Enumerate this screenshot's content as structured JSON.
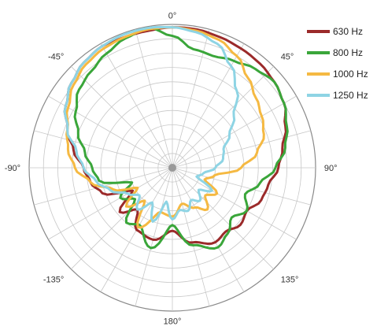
{
  "chart_data": {
    "type": "polar-line",
    "title": "",
    "angle_ticks": [
      {
        "angle": 0,
        "label": "0°"
      },
      {
        "angle": -45,
        "label": "-45°"
      },
      {
        "angle": 45,
        "label": "45°"
      },
      {
        "angle": -90,
        "label": "-90°"
      },
      {
        "angle": 90,
        "label": "90°"
      },
      {
        "angle": -135,
        "label": "-135°"
      },
      {
        "angle": 135,
        "label": "135°"
      },
      {
        "angle": 180,
        "label": "180°"
      }
    ],
    "angular_grid_step_deg": 15,
    "radial_grid_rings": 10,
    "legend_position": "top-right",
    "series": [
      {
        "name": "630 Hz",
        "color": "#9b2a2a",
        "points": [
          [
            -180,
            0.44
          ],
          [
            -165,
            0.52
          ],
          [
            -150,
            0.5
          ],
          [
            -140,
            0.38
          ],
          [
            -130,
            0.48
          ],
          [
            -120,
            0.32
          ],
          [
            -110,
            0.52
          ],
          [
            -100,
            0.58
          ],
          [
            -90,
            0.62
          ],
          [
            -80,
            0.7
          ],
          [
            -70,
            0.78
          ],
          [
            -60,
            0.86
          ],
          [
            -50,
            0.92
          ],
          [
            -40,
            0.96
          ],
          [
            -30,
            0.98
          ],
          [
            -20,
            0.97
          ],
          [
            -10,
            0.97
          ],
          [
            0,
            0.98
          ],
          [
            10,
            0.98
          ],
          [
            20,
            0.97
          ],
          [
            30,
            0.96
          ],
          [
            40,
            0.95
          ],
          [
            50,
            0.93
          ],
          [
            60,
            0.9
          ],
          [
            70,
            0.84
          ],
          [
            80,
            0.78
          ],
          [
            90,
            0.74
          ],
          [
            100,
            0.68
          ],
          [
            110,
            0.66
          ],
          [
            120,
            0.6
          ],
          [
            130,
            0.62
          ],
          [
            140,
            0.58
          ],
          [
            150,
            0.6
          ],
          [
            165,
            0.54
          ],
          [
            180,
            0.44
          ]
        ]
      },
      {
        "name": "800 Hz",
        "color": "#3aa63a",
        "points": [
          [
            -180,
            0.4
          ],
          [
            -165,
            0.58
          ],
          [
            -150,
            0.46
          ],
          [
            -140,
            0.5
          ],
          [
            -130,
            0.34
          ],
          [
            -120,
            0.42
          ],
          [
            -110,
            0.3
          ],
          [
            -100,
            0.52
          ],
          [
            -90,
            0.56
          ],
          [
            -80,
            0.62
          ],
          [
            -70,
            0.7
          ],
          [
            -60,
            0.78
          ],
          [
            -50,
            0.85
          ],
          [
            -40,
            0.88
          ],
          [
            -30,
            0.92
          ],
          [
            -20,
            0.96
          ],
          [
            -10,
            0.99
          ],
          [
            0,
            0.92
          ],
          [
            10,
            0.84
          ],
          [
            20,
            0.83
          ],
          [
            30,
            0.86
          ],
          [
            40,
            0.9
          ],
          [
            50,
            0.93
          ],
          [
            60,
            0.9
          ],
          [
            70,
            0.85
          ],
          [
            80,
            0.8
          ],
          [
            90,
            0.72
          ],
          [
            100,
            0.62
          ],
          [
            110,
            0.54
          ],
          [
            120,
            0.6
          ],
          [
            130,
            0.54
          ],
          [
            140,
            0.6
          ],
          [
            150,
            0.64
          ],
          [
            165,
            0.56
          ],
          [
            180,
            0.4
          ]
        ]
      },
      {
        "name": "1000 Hz",
        "color": "#f5b942",
        "points": [
          [
            -180,
            0.34
          ],
          [
            -165,
            0.32
          ],
          [
            -150,
            0.48
          ],
          [
            -140,
            0.3
          ],
          [
            -130,
            0.42
          ],
          [
            -120,
            0.28
          ],
          [
            -110,
            0.44
          ],
          [
            -100,
            0.58
          ],
          [
            -90,
            0.68
          ],
          [
            -80,
            0.74
          ],
          [
            -70,
            0.78
          ],
          [
            -60,
            0.84
          ],
          [
            -50,
            0.9
          ],
          [
            -40,
            0.94
          ],
          [
            -30,
            0.96
          ],
          [
            -20,
            0.97
          ],
          [
            -10,
            0.98
          ],
          [
            0,
            0.98
          ],
          [
            10,
            0.97
          ],
          [
            20,
            0.95
          ],
          [
            30,
            0.9
          ],
          [
            40,
            0.82
          ],
          [
            50,
            0.76
          ],
          [
            60,
            0.72
          ],
          [
            70,
            0.68
          ],
          [
            80,
            0.6
          ],
          [
            90,
            0.48
          ],
          [
            100,
            0.3
          ],
          [
            110,
            0.24
          ],
          [
            120,
            0.36
          ],
          [
            130,
            0.3
          ],
          [
            140,
            0.38
          ],
          [
            150,
            0.32
          ],
          [
            165,
            0.26
          ],
          [
            180,
            0.34
          ]
        ]
      },
      {
        "name": "1250 Hz",
        "color": "#8ed4e4",
        "points": [
          [
            -180,
            0.36
          ],
          [
            -170,
            0.24
          ],
          [
            -160,
            0.4
          ],
          [
            -150,
            0.28
          ],
          [
            -140,
            0.38
          ],
          [
            -130,
            0.3
          ],
          [
            -120,
            0.36
          ],
          [
            -110,
            0.46
          ],
          [
            -100,
            0.54
          ],
          [
            -90,
            0.62
          ],
          [
            -80,
            0.68
          ],
          [
            -70,
            0.78
          ],
          [
            -60,
            0.86
          ],
          [
            -50,
            0.92
          ],
          [
            -40,
            0.96
          ],
          [
            -30,
            0.98
          ],
          [
            -20,
            0.99
          ],
          [
            -10,
            0.99
          ],
          [
            0,
            0.98
          ],
          [
            10,
            0.96
          ],
          [
            20,
            0.92
          ],
          [
            30,
            0.82
          ],
          [
            40,
            0.7
          ],
          [
            50,
            0.56
          ],
          [
            60,
            0.46
          ],
          [
            70,
            0.38
          ],
          [
            80,
            0.36
          ],
          [
            90,
            0.3
          ],
          [
            100,
            0.22
          ],
          [
            110,
            0.18
          ],
          [
            120,
            0.32
          ],
          [
            130,
            0.24
          ],
          [
            140,
            0.3
          ],
          [
            150,
            0.26
          ],
          [
            160,
            0.32
          ],
          [
            170,
            0.3
          ],
          [
            180,
            0.36
          ]
        ]
      }
    ]
  }
}
